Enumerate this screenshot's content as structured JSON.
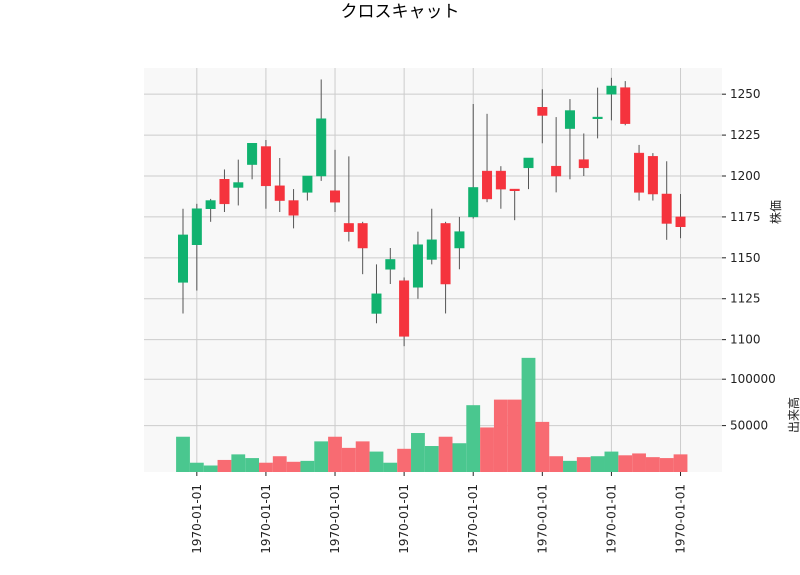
{
  "chart_data": {
    "type": "candlestick",
    "title": "クロスキャット",
    "price_axis": {
      "label": "株価",
      "ylim": [
        1090,
        1266
      ],
      "ticks": [
        1100,
        1125,
        1150,
        1175,
        1200,
        1225,
        1250
      ]
    },
    "volume_axis": {
      "label": "出来高",
      "ylim": [
        0,
        125000
      ],
      "ticks": [
        50000,
        100000
      ]
    },
    "x_tick_labels": [
      "1970-01-01",
      "1970-01-01",
      "1970-01-01",
      "1970-01-01",
      "1970-01-01",
      "1970-01-01",
      "1970-01-01",
      "1970-01-01"
    ],
    "x_tick_positions": [
      1,
      6,
      11,
      16,
      21,
      26,
      31,
      36
    ],
    "grid": true,
    "colors": {
      "up": "#10b26f",
      "down": "#f5333d",
      "up_volume": "#4ac78f",
      "down_volume": "#f86b72",
      "wick": "#555555",
      "panel_bg": "#f8f8f8",
      "grid": "#cccccc"
    },
    "candles": [
      {
        "o": 1135,
        "h": 1180,
        "l": 1116,
        "c": 1164,
        "v": 38000
      },
      {
        "o": 1158,
        "h": 1183,
        "l": 1130,
        "c": 1180,
        "v": 10000
      },
      {
        "o": 1180,
        "h": 1186,
        "l": 1172,
        "c": 1185,
        "v": 7000
      },
      {
        "o": 1198,
        "h": 1204,
        "l": 1178,
        "c": 1183,
        "v": 13000
      },
      {
        "o": 1193,
        "h": 1210,
        "l": 1182,
        "c": 1196,
        "v": 19000
      },
      {
        "o": 1207,
        "h": 1220,
        "l": 1198,
        "c": 1220,
        "v": 15000
      },
      {
        "o": 1218,
        "h": 1222,
        "l": 1180,
        "c": 1194,
        "v": 10000
      },
      {
        "o": 1194,
        "h": 1211,
        "l": 1178,
        "c": 1185,
        "v": 17000
      },
      {
        "o": 1185,
        "h": 1192,
        "l": 1168,
        "c": 1176,
        "v": 11000
      },
      {
        "o": 1190,
        "h": 1200,
        "l": 1185,
        "c": 1200,
        "v": 12000
      },
      {
        "o": 1200,
        "h": 1259,
        "l": 1197,
        "c": 1235,
        "v": 33000
      },
      {
        "o": 1191,
        "h": 1216,
        "l": 1178,
        "c": 1184,
        "v": 38000
      },
      {
        "o": 1171,
        "h": 1212,
        "l": 1160,
        "c": 1166,
        "v": 26000
      },
      {
        "o": 1171,
        "h": 1172,
        "l": 1140,
        "c": 1156,
        "v": 33000
      },
      {
        "o": 1116,
        "h": 1146,
        "l": 1110,
        "c": 1128,
        "v": 22000
      },
      {
        "o": 1143,
        "h": 1156,
        "l": 1134,
        "c": 1149,
        "v": 10000
      },
      {
        "o": 1136,
        "h": 1138,
        "l": 1096,
        "c": 1102,
        "v": 25000
      },
      {
        "o": 1132,
        "h": 1166,
        "l": 1125,
        "c": 1158,
        "v": 42000
      },
      {
        "o": 1149,
        "h": 1180,
        "l": 1146,
        "c": 1161,
        "v": 28000
      },
      {
        "o": 1171,
        "h": 1172,
        "l": 1116,
        "c": 1134,
        "v": 38000
      },
      {
        "o": 1156,
        "h": 1175,
        "l": 1143,
        "c": 1166,
        "v": 31000
      },
      {
        "o": 1175,
        "h": 1244,
        "l": 1174,
        "c": 1193,
        "v": 72000
      },
      {
        "o": 1203,
        "h": 1238,
        "l": 1184,
        "c": 1186,
        "v": 48000
      },
      {
        "o": 1203,
        "h": 1206,
        "l": 1180,
        "c": 1192,
        "v": 78000
      },
      {
        "o": 1192,
        "h": 1192,
        "l": 1173,
        "c": 1191,
        "v": 78000
      },
      {
        "o": 1205,
        "h": 1211,
        "l": 1192,
        "c": 1211,
        "v": 123000
      },
      {
        "o": 1242,
        "h": 1253,
        "l": 1220,
        "c": 1237,
        "v": 54000
      },
      {
        "o": 1206,
        "h": 1236,
        "l": 1190,
        "c": 1200,
        "v": 17000
      },
      {
        "o": 1229,
        "h": 1247,
        "l": 1198,
        "c": 1240,
        "v": 12000
      },
      {
        "o": 1210,
        "h": 1226,
        "l": 1200,
        "c": 1205,
        "v": 16000
      },
      {
        "o": 1235,
        "h": 1254,
        "l": 1223,
        "c": 1236,
        "v": 17000
      },
      {
        "o": 1250,
        "h": 1260,
        "l": 1234,
        "c": 1255,
        "v": 22000
      },
      {
        "o": 1254,
        "h": 1258,
        "l": 1231,
        "c": 1232,
        "v": 18000
      },
      {
        "o": 1214,
        "h": 1219,
        "l": 1185,
        "c": 1190,
        "v": 20000
      },
      {
        "o": 1212,
        "h": 1214,
        "l": 1185,
        "c": 1189,
        "v": 16000
      },
      {
        "o": 1189,
        "h": 1209,
        "l": 1161,
        "c": 1171,
        "v": 15000
      },
      {
        "o": 1175,
        "h": 1189,
        "l": 1162,
        "c": 1169,
        "v": 19000
      }
    ]
  }
}
